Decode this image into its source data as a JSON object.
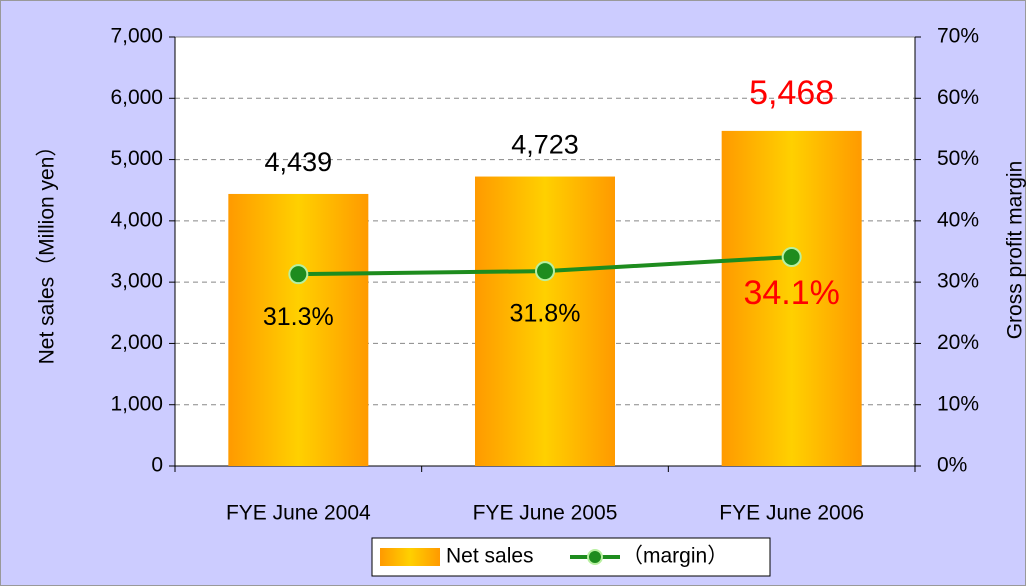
{
  "chart_data": {
    "type": "bar",
    "categories": [
      "FYE June 2004",
      "FYE June 2005",
      "FYE June 2006"
    ],
    "series": [
      {
        "name": "Net sales",
        "type": "bar",
        "color": "#ffb000",
        "values": [
          4439,
          4723,
          5468
        ],
        "value_labels": [
          "4,439",
          "4,723",
          "5,468"
        ],
        "value_label_colors": [
          "#000000",
          "#000000",
          "#ff0000"
        ]
      },
      {
        "name": "（margin）",
        "type": "line",
        "axis": "y2",
        "color": "#1e8c1e",
        "values": [
          31.3,
          31.8,
          34.1
        ],
        "value_labels": [
          "31.3%",
          "31.8%",
          "34.1%"
        ],
        "value_label_colors": [
          "#000000",
          "#000000",
          "#ff0000"
        ]
      }
    ],
    "ylabel": "Net sales（Million yen）",
    "y2label": "Gross profit margin",
    "ylim": [
      0,
      7000
    ],
    "yticks": [
      0,
      {
        "value": 1000,
        "label": "1,000"
      },
      {
        "value": 2000,
        "label": "2,000"
      },
      {
        "value": 3000,
        "label": "3,000"
      },
      {
        "value": 4000,
        "label": "4,000"
      },
      {
        "value": 5000,
        "label": "5,000"
      },
      {
        "value": 6000,
        "label": "6,000"
      },
      {
        "value": 7000,
        "label": "7,000"
      }
    ],
    "y2lim": [
      0,
      70
    ],
    "y2ticks": [
      {
        "value": 0,
        "label": "0%"
      },
      {
        "value": 10,
        "label": "10%"
      },
      {
        "value": 20,
        "label": "20%"
      },
      {
        "value": 30,
        "label": "30%"
      },
      {
        "value": 40,
        "label": "40%"
      },
      {
        "value": 50,
        "label": "50%"
      },
      {
        "value": 60,
        "label": "60%"
      },
      {
        "value": 70,
        "label": "70%"
      }
    ],
    "grid": true,
    "legend": "bottom"
  }
}
